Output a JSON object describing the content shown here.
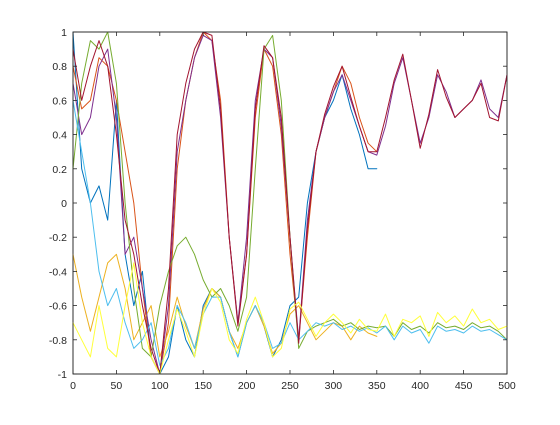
{
  "chart_data": {
    "type": "line",
    "title": "",
    "xlabel": "",
    "ylabel": "",
    "xlim": [
      0,
      500
    ],
    "ylim": [
      -1,
      1
    ],
    "xticks": [
      0,
      50,
      100,
      150,
      200,
      250,
      300,
      350,
      400,
      450,
      500
    ],
    "yticks": [
      -1,
      -0.8,
      -0.6,
      -0.4,
      -0.2,
      0,
      0.2,
      0.4,
      0.6,
      0.8,
      1
    ],
    "xtick_labels": [
      "0",
      "50",
      "100",
      "150",
      "200",
      "250",
      "300",
      "350",
      "400",
      "450",
      "500"
    ],
    "ytick_labels": [
      "-1",
      "-0.8",
      "-0.6",
      "-0.4",
      "-0.2",
      "0",
      "0.2",
      "0.4",
      "0.6",
      "0.8",
      "1"
    ],
    "grid": false,
    "series": [
      {
        "color": "#0072BD",
        "x": [
          0,
          10,
          20,
          30,
          40,
          50,
          60,
          70,
          80,
          90,
          100,
          110,
          120,
          130,
          140,
          150,
          160,
          170,
          180,
          190,
          200,
          210,
          220,
          230,
          240,
          250,
          260,
          270,
          280,
          290,
          300,
          310,
          320,
          330,
          340,
          350
        ],
        "y": [
          1,
          0.2,
          0,
          0.1,
          -0.1,
          0.6,
          -0.3,
          -0.6,
          -0.4,
          -0.9,
          -1,
          -0.9,
          -0.6,
          -0.8,
          -0.9,
          -0.6,
          -0.5,
          -0.55,
          -0.75,
          -0.9,
          -0.7,
          -0.6,
          -0.72,
          -0.9,
          -0.8,
          -0.6,
          -0.55,
          0,
          0.3,
          0.5,
          0.6,
          0.75,
          0.55,
          0.4,
          0.2,
          0.2
        ]
      },
      {
        "color": "#D95319",
        "x": [
          0,
          10,
          20,
          30,
          40,
          50,
          60,
          70,
          80,
          90,
          100,
          110,
          120,
          130,
          140,
          150,
          160,
          170,
          180,
          190,
          200,
          210,
          220,
          230,
          240,
          250,
          260,
          270,
          280,
          290,
          300,
          310,
          320,
          330,
          340,
          350
        ],
        "y": [
          0.8,
          0.55,
          0.6,
          0.85,
          0.8,
          0.6,
          0.3,
          0,
          -0.5,
          -0.9,
          -1,
          -0.7,
          0.2,
          0.6,
          0.85,
          1,
          0.95,
          0.6,
          -0.2,
          -0.7,
          -0.3,
          0.5,
          0.9,
          0.8,
          0.4,
          -0.3,
          -0.8,
          -0.2,
          0.3,
          0.5,
          0.65,
          0.8,
          0.7,
          0.5,
          0.35,
          0.3
        ]
      },
      {
        "color": "#EDB120",
        "x": [
          0,
          10,
          20,
          30,
          40,
          50,
          60,
          70,
          80,
          90,
          100,
          110,
          120,
          130,
          140,
          150,
          160,
          170,
          180,
          190,
          200,
          210,
          220,
          230,
          240,
          250,
          260,
          270,
          280,
          290,
          300,
          310,
          320,
          330,
          340,
          350
        ],
        "y": [
          -0.3,
          -0.55,
          -0.75,
          -0.55,
          -0.35,
          -0.3,
          -0.5,
          -0.8,
          -0.7,
          -0.6,
          -0.9,
          -0.75,
          -0.55,
          -0.72,
          -0.85,
          -0.62,
          -0.5,
          -0.55,
          -0.75,
          -0.85,
          -0.7,
          -0.6,
          -0.72,
          -0.88,
          -0.82,
          -0.65,
          -0.6,
          -0.7,
          -0.8,
          -0.75,
          -0.7,
          -0.72,
          -0.8,
          -0.72,
          -0.76,
          -0.78
        ]
      },
      {
        "color": "#7E2F8E",
        "x": [
          0,
          10,
          20,
          30,
          40,
          50,
          60,
          70,
          80,
          90,
          100,
          110,
          120,
          130,
          140,
          150,
          160,
          170,
          180,
          190,
          200,
          210,
          220,
          230,
          240,
          250,
          260,
          270,
          280,
          290,
          300,
          310,
          320,
          330,
          340,
          350,
          360,
          370,
          380,
          390,
          400,
          410,
          420,
          430,
          440,
          450,
          460,
          470,
          480,
          490,
          500
        ],
        "y": [
          0.7,
          0.4,
          0.5,
          0.8,
          0.9,
          0.5,
          -0.3,
          -0.2,
          -0.5,
          -0.8,
          -1,
          -0.6,
          0.3,
          0.6,
          0.85,
          0.98,
          0.95,
          0.5,
          -0.2,
          -0.7,
          -0.2,
          0.6,
          0.9,
          0.85,
          0.45,
          -0.2,
          -0.8,
          -0.1,
          0.3,
          0.5,
          0.65,
          0.75,
          0.6,
          0.45,
          0.3,
          0.28,
          0.45,
          0.7,
          0.85,
          0.6,
          0.35,
          0.5,
          0.75,
          0.65,
          0.5,
          0.55,
          0.6,
          0.72,
          0.55,
          0.5,
          0.75
        ]
      },
      {
        "color": "#77AC30",
        "x": [
          0,
          10,
          20,
          30,
          40,
          50,
          60,
          70,
          80,
          90,
          100,
          110,
          120,
          130,
          140,
          150,
          160,
          170,
          180,
          190,
          200,
          210,
          220,
          230,
          240,
          250,
          260,
          270,
          280,
          290,
          300,
          310,
          320,
          330,
          340,
          350,
          360,
          370,
          380,
          390,
          400,
          410,
          420,
          430,
          440,
          450,
          460,
          470,
          480,
          490,
          500
        ],
        "y": [
          0.2,
          0.7,
          0.95,
          0.9,
          1,
          0.7,
          0,
          -0.5,
          -0.85,
          -0.9,
          -0.6,
          -0.4,
          -0.25,
          -0.2,
          -0.3,
          -0.45,
          -0.55,
          -0.5,
          -0.6,
          -0.75,
          -0.55,
          0.2,
          0.9,
          0.98,
          0.6,
          -0.2,
          -0.85,
          -0.75,
          -0.72,
          -0.7,
          -0.68,
          -0.72,
          -0.7,
          -0.74,
          -0.72,
          -0.73,
          -0.72,
          -0.78,
          -0.7,
          -0.74,
          -0.72,
          -0.76,
          -0.7,
          -0.73,
          -0.72,
          -0.74,
          -0.7,
          -0.73,
          -0.72,
          -0.75,
          -0.8
        ]
      },
      {
        "color": "#4DBEEE",
        "x": [
          0,
          10,
          20,
          30,
          40,
          50,
          60,
          70,
          80,
          90,
          100,
          110,
          120,
          130,
          140,
          150,
          160,
          170,
          180,
          190,
          200,
          210,
          220,
          230,
          240,
          250,
          260,
          270,
          280,
          290,
          300,
          310,
          320,
          330,
          340,
          350,
          360,
          370,
          380,
          390,
          400,
          410,
          420,
          430,
          440,
          450,
          460,
          470,
          480,
          490,
          500
        ],
        "y": [
          0.6,
          0.3,
          0,
          -0.4,
          -0.6,
          -0.5,
          -0.7,
          -0.85,
          -0.8,
          -0.7,
          -0.95,
          -0.85,
          -0.6,
          -0.7,
          -0.85,
          -0.65,
          -0.55,
          -0.55,
          -0.75,
          -0.9,
          -0.7,
          -0.6,
          -0.7,
          -0.85,
          -0.82,
          -0.7,
          -0.8,
          -0.75,
          -0.7,
          -0.72,
          -0.7,
          -0.74,
          -0.72,
          -0.75,
          -0.73,
          -0.76,
          -0.72,
          -0.8,
          -0.72,
          -0.76,
          -0.74,
          -0.82,
          -0.72,
          -0.75,
          -0.74,
          -0.76,
          -0.72,
          -0.75,
          -0.74,
          -0.77,
          -0.8
        ]
      },
      {
        "color": "#A2142F",
        "x": [
          0,
          10,
          20,
          30,
          40,
          50,
          60,
          70,
          80,
          90,
          100,
          110,
          120,
          130,
          140,
          150,
          160,
          170,
          180,
          190,
          200,
          210,
          220,
          230,
          240,
          250,
          260,
          270,
          280,
          290,
          300,
          310,
          320,
          330,
          340,
          350,
          360,
          370,
          380,
          390,
          400,
          410,
          420,
          430,
          440,
          450,
          460,
          470,
          480,
          490,
          500
        ],
        "y": [
          0.9,
          0.6,
          0.8,
          0.95,
          0.8,
          0.4,
          -0.1,
          -0.3,
          -0.6,
          -0.85,
          -1,
          -0.5,
          0.4,
          0.7,
          0.9,
          1,
          0.98,
          0.55,
          -0.2,
          -0.72,
          -0.3,
          0.55,
          0.92,
          0.85,
          0.5,
          -0.2,
          -0.82,
          -0.15,
          0.3,
          0.52,
          0.68,
          0.8,
          0.62,
          0.45,
          0.3,
          0.3,
          0.5,
          0.72,
          0.87,
          0.6,
          0.32,
          0.52,
          0.78,
          0.62,
          0.5,
          0.55,
          0.6,
          0.7,
          0.5,
          0.48,
          0.75
        ]
      },
      {
        "color": "#FFFF3A",
        "x": [
          0,
          10,
          20,
          30,
          40,
          50,
          60,
          70,
          80,
          90,
          100,
          110,
          120,
          130,
          140,
          150,
          160,
          170,
          180,
          190,
          200,
          210,
          220,
          230,
          240,
          250,
          260,
          270,
          280,
          290,
          300,
          310,
          320,
          330,
          340,
          350,
          360,
          370,
          380,
          390,
          400,
          410,
          420,
          430,
          440,
          450,
          460,
          470,
          480,
          490,
          500
        ],
        "y": [
          -0.7,
          -0.8,
          -0.9,
          -0.6,
          -0.85,
          -0.9,
          -0.6,
          -0.35,
          -0.7,
          -0.9,
          -1,
          -0.8,
          -0.62,
          -0.75,
          -0.9,
          -0.65,
          -0.5,
          -0.58,
          -0.8,
          -0.88,
          -0.68,
          -0.55,
          -0.7,
          -0.9,
          -0.85,
          -0.62,
          -0.58,
          -0.68,
          -0.78,
          -0.7,
          -0.65,
          -0.7,
          -0.76,
          -0.68,
          -0.74,
          -0.75,
          -0.65,
          -0.78,
          -0.68,
          -0.7,
          -0.66,
          -0.78,
          -0.64,
          -0.7,
          -0.66,
          -0.72,
          -0.62,
          -0.7,
          -0.68,
          -0.74,
          -0.72
        ]
      }
    ]
  }
}
